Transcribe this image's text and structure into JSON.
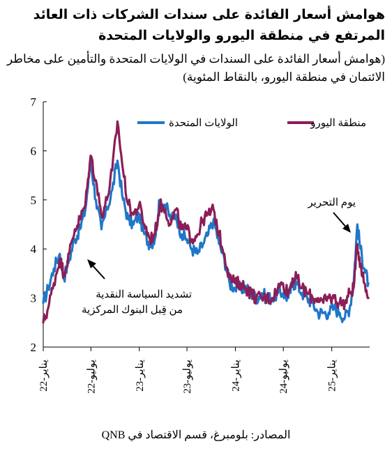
{
  "colors": {
    "us": "#1f77c8",
    "eu": "#8b1e57",
    "axis": "#000000"
  },
  "title": "هوامش أسعار الفائدة على سندات الشركات ذات العائد المرتفع في منطقة اليورو والولايات المتحدة",
  "subtitle": "(هوامش أسعار الفائدة على السندات في الولايات المتحدة والتأمين على مخاطر الائتمان في منطقة اليورو، بالنقاط المئوية)",
  "source": "المصادر: بلومبرغ، قسم الاقتصاد في QNB",
  "chart_data": {
    "type": "line",
    "ylim": [
      2,
      7
    ],
    "yticks": [
      "2",
      "3",
      "4",
      "5",
      "6",
      "7"
    ],
    "x_range": [
      "2022-01",
      "2025-05"
    ],
    "xticks": [
      "يناير-22",
      "يوليو-22",
      "يناير-23",
      "يوليو-23",
      "يناير-24",
      "يوليو-24",
      "يناير-25"
    ],
    "grid": false,
    "legend_position": "top",
    "annotations": [
      {
        "text": "يوم التحرير",
        "x": "2025-04"
      },
      {
        "text": "تشديد السياسة النقدية من قِبل البنوك المركزية",
        "x": "2022-06"
      }
    ],
    "series": [
      {
        "name": "الولايات المتحدة",
        "color": "#1f77c8",
        "x": [
          "2022-01-01",
          "2022-01-20",
          "2022-02-10",
          "2022-03-05",
          "2022-03-20",
          "2022-04-10",
          "2022-05-01",
          "2022-05-20",
          "2022-06-10",
          "2022-06-30",
          "2022-07-20",
          "2022-08-10",
          "2022-08-31",
          "2022-09-20",
          "2022-10-10",
          "2022-10-31",
          "2022-11-20",
          "2022-12-10",
          "2022-12-31",
          "2023-01-20",
          "2023-02-10",
          "2023-03-01",
          "2023-03-20",
          "2023-04-10",
          "2023-04-30",
          "2023-05-20",
          "2023-06-10",
          "2023-06-30",
          "2023-07-20",
          "2023-08-10",
          "2023-08-31",
          "2023-09-20",
          "2023-10-10",
          "2023-10-31",
          "2023-11-20",
          "2023-12-10",
          "2023-12-31",
          "2024-01-20",
          "2024-02-10",
          "2024-03-01",
          "2024-03-20",
          "2024-04-10",
          "2024-04-30",
          "2024-05-20",
          "2024-06-10",
          "2024-06-30",
          "2024-07-20",
          "2024-08-05",
          "2024-08-20",
          "2024-09-10",
          "2024-09-30",
          "2024-10-20",
          "2024-11-10",
          "2024-11-30",
          "2024-12-20",
          "2025-01-10",
          "2025-01-31",
          "2025-02-20",
          "2025-03-10",
          "2025-03-25",
          "2025-04-08",
          "2025-04-20",
          "2025-05-05",
          "2025-05-20"
        ],
        "values": [
          2.9,
          3.2,
          3.6,
          3.9,
          3.4,
          3.8,
          4.2,
          4.4,
          4.8,
          5.8,
          5.0,
          4.4,
          4.8,
          5.2,
          5.8,
          5.0,
          4.6,
          4.5,
          4.7,
          4.3,
          4.1,
          4.2,
          5.0,
          4.9,
          4.6,
          4.7,
          4.3,
          4.2,
          4.0,
          3.9,
          4.1,
          4.3,
          4.6,
          4.1,
          3.8,
          3.3,
          3.2,
          3.2,
          3.2,
          3.1,
          3.0,
          3.1,
          3.0,
          3.0,
          3.1,
          3.1,
          3.0,
          3.3,
          3.3,
          3.1,
          3.0,
          2.9,
          2.7,
          2.7,
          2.7,
          2.8,
          2.7,
          2.6,
          2.8,
          3.3,
          4.5,
          4.0,
          3.6,
          3.3
        ]
      },
      {
        "name": "منطقة اليورو",
        "color": "#8b1e57",
        "x": [
          "2022-01-01",
          "2022-01-20",
          "2022-02-10",
          "2022-03-05",
          "2022-03-20",
          "2022-04-10",
          "2022-05-01",
          "2022-05-20",
          "2022-06-10",
          "2022-06-30",
          "2022-07-20",
          "2022-08-10",
          "2022-08-31",
          "2022-09-20",
          "2022-10-10",
          "2022-10-31",
          "2022-11-20",
          "2022-12-10",
          "2022-12-31",
          "2023-01-20",
          "2023-02-10",
          "2023-03-01",
          "2023-03-20",
          "2023-04-10",
          "2023-04-30",
          "2023-05-20",
          "2023-06-10",
          "2023-06-30",
          "2023-07-20",
          "2023-08-10",
          "2023-08-31",
          "2023-09-20",
          "2023-10-10",
          "2023-10-31",
          "2023-11-20",
          "2023-12-10",
          "2023-12-31",
          "2024-01-20",
          "2024-02-10",
          "2024-03-01",
          "2024-03-20",
          "2024-04-10",
          "2024-04-30",
          "2024-05-20",
          "2024-06-10",
          "2024-06-30",
          "2024-07-20",
          "2024-08-05",
          "2024-08-20",
          "2024-09-10",
          "2024-09-30",
          "2024-10-20",
          "2024-11-10",
          "2024-11-30",
          "2024-12-20",
          "2025-01-10",
          "2025-01-31",
          "2025-02-20",
          "2025-03-10",
          "2025-03-25",
          "2025-04-08",
          "2025-04-20",
          "2025-05-05",
          "2025-05-20"
        ],
        "values": [
          2.5,
          2.8,
          3.3,
          3.8,
          3.5,
          3.9,
          4.4,
          4.6,
          4.9,
          5.9,
          5.4,
          4.7,
          5.0,
          5.6,
          6.6,
          5.6,
          4.9,
          4.7,
          4.9,
          4.5,
          4.2,
          4.3,
          4.9,
          4.8,
          4.5,
          4.8,
          4.4,
          4.4,
          4.2,
          4.3,
          4.6,
          4.7,
          4.8,
          4.3,
          3.9,
          3.4,
          3.3,
          3.3,
          3.2,
          3.1,
          3.0,
          3.0,
          3.0,
          3.0,
          3.2,
          3.3,
          3.1,
          3.4,
          3.4,
          3.2,
          3.1,
          3.0,
          3.0,
          2.9,
          3.0,
          3.0,
          2.9,
          2.9,
          3.1,
          3.2,
          4.1,
          3.7,
          3.3,
          3.0
        ]
      }
    ]
  }
}
